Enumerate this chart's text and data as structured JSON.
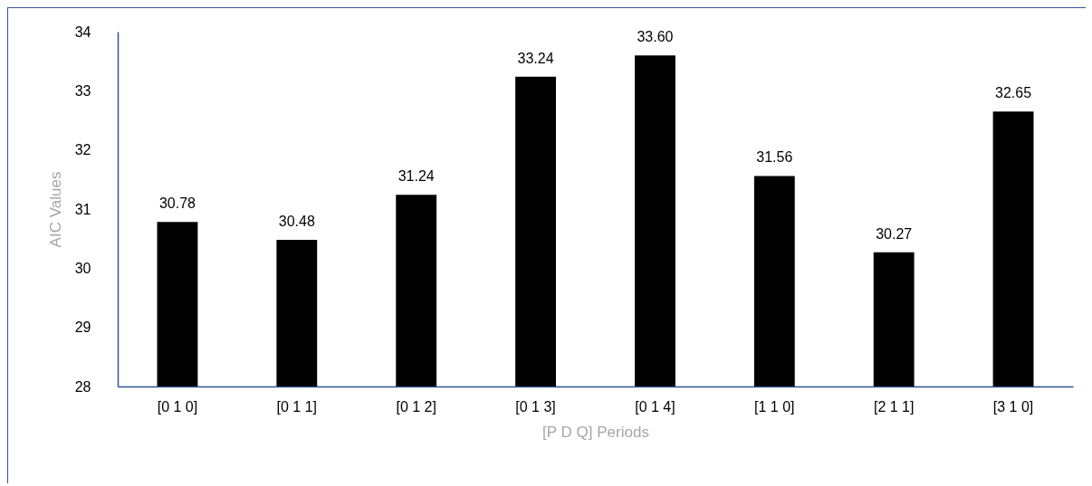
{
  "chart_data": {
    "type": "bar",
    "xlabel": "[P D Q] Periods",
    "ylabel": "AIC Values",
    "categories": [
      "[0 1 0]",
      "[0 1 1]",
      "[0 1 2]",
      "[0 1 3]",
      "[0 1 4]",
      "[1 1 0]",
      "[2 1 1]",
      "[3 1 0]"
    ],
    "values": [
      30.78,
      30.48,
      31.24,
      33.24,
      33.6,
      31.56,
      30.27,
      32.65
    ],
    "value_labels": [
      "30.78",
      "30.48",
      "31.24",
      "33.24",
      "33.60",
      "31.56",
      "30.27",
      "32.65"
    ],
    "color": "#000000",
    "ylim": [
      28,
      34
    ],
    "yticks": [
      28,
      29,
      30,
      31,
      32,
      33,
      34
    ],
    "grid": false
  }
}
